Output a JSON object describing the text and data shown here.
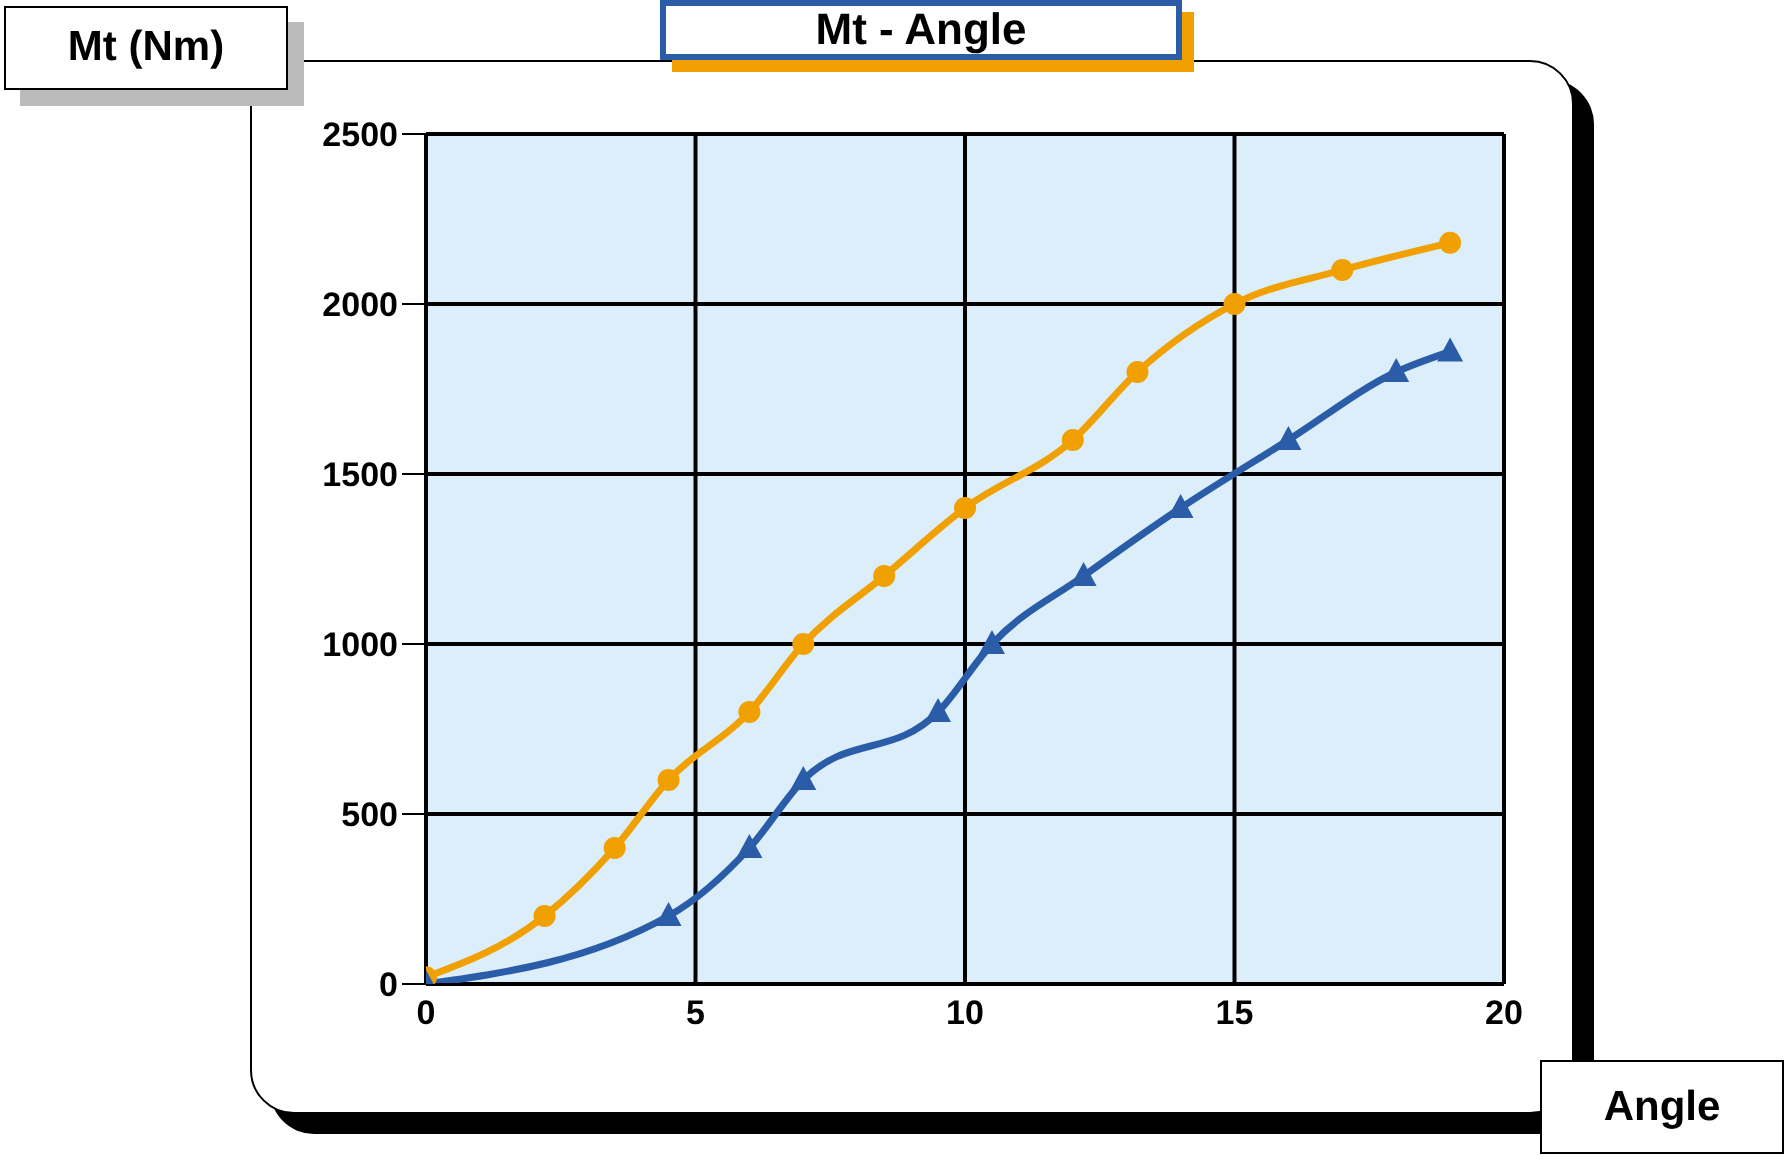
{
  "chart_data": {
    "type": "line",
    "title": "Mt - Angle",
    "xlabel": "Angle",
    "ylabel": "Mt (Nm)",
    "xlim": [
      0,
      20
    ],
    "xticks": [
      0,
      5,
      10,
      15,
      20
    ],
    "ylim": [
      0,
      2500
    ],
    "yticks": [
      0,
      500,
      1000,
      1500,
      2000,
      2500
    ],
    "grid": true,
    "line_style": "solid",
    "series": [
      {
        "color": "#f0a000",
        "marker": "circle",
        "x": [
          0,
          2.2,
          3.5,
          4.5,
          6,
          7,
          8.5,
          10,
          12,
          13.2,
          15,
          17,
          19
        ],
        "values": [
          20,
          200,
          400,
          600,
          800,
          1000,
          1200,
          1400,
          1600,
          1800,
          2000,
          2100,
          2180
        ]
      },
      {
        "color": "#2a5ca8",
        "marker": "triangle",
        "x": [
          0,
          4.5,
          6,
          7,
          9.5,
          10.5,
          12.2,
          14,
          16,
          18,
          19
        ],
        "values": [
          0,
          200,
          400,
          600,
          800,
          1000,
          1200,
          1400,
          1600,
          1800,
          1860
        ]
      }
    ]
  }
}
